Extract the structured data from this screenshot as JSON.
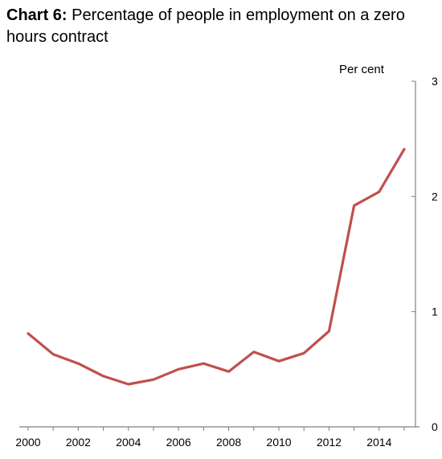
{
  "title": {
    "prefix": "Chart 6:",
    "text": " Percentage of people in employment on a zero hours contract"
  },
  "chart_data": {
    "type": "line",
    "ylabel": "Per cent",
    "ylim": [
      0,
      3
    ],
    "xlim": [
      2000,
      2015
    ],
    "x_ticks": [
      "2000",
      "2002",
      "2004",
      "2006",
      "2008",
      "2010",
      "2012",
      "2014"
    ],
    "y_ticks": [
      "0",
      "1",
      "2",
      "3"
    ],
    "y_axis_position": "right",
    "grid": false,
    "series": [
      {
        "color": "#c0504d",
        "x": [
          2000,
          2001,
          2002,
          2003,
          2004,
          2005,
          2006,
          2007,
          2008,
          2009,
          2010,
          2011,
          2012,
          2013,
          2014,
          2015
        ],
        "values": [
          0.81,
          0.63,
          0.55,
          0.44,
          0.37,
          0.41,
          0.5,
          0.55,
          0.48,
          0.65,
          0.57,
          0.64,
          0.83,
          1.92,
          2.04,
          2.41
        ]
      }
    ]
  }
}
